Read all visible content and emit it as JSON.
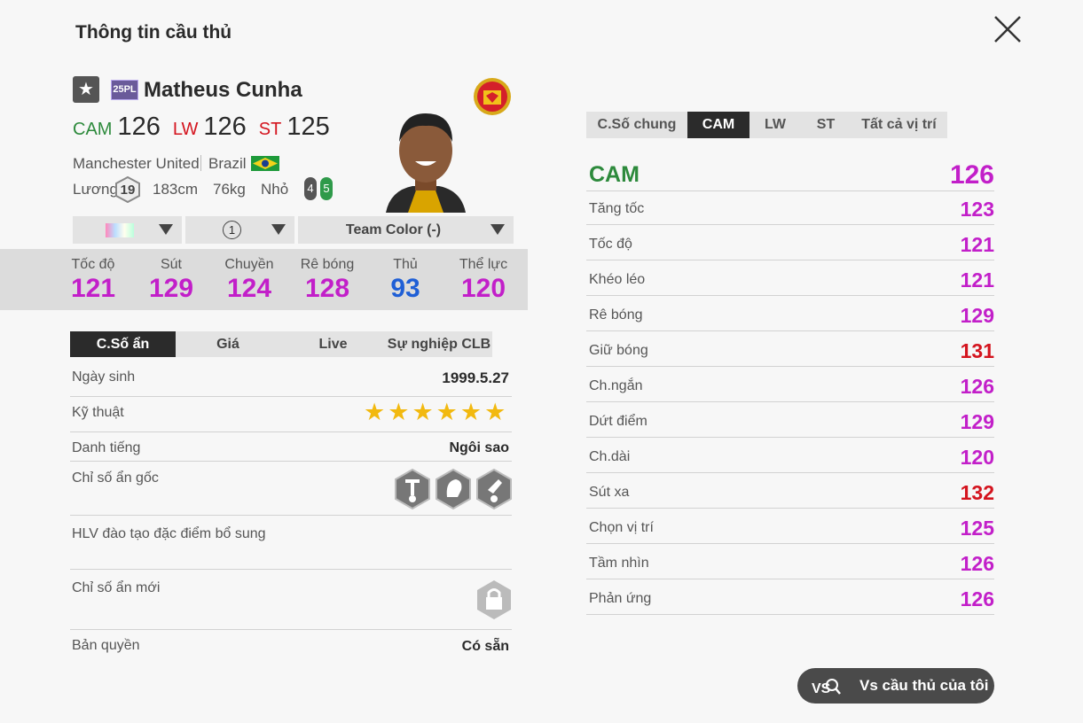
{
  "header": {
    "title": "Thông tin cầu thủ"
  },
  "player": {
    "season": "25PL",
    "name": "Matheus Cunha",
    "positions": [
      {
        "pos": "CAM",
        "ovr": 126
      },
      {
        "pos": "LW",
        "ovr": 126
      },
      {
        "pos": "ST",
        "ovr": 125
      }
    ],
    "club": "Manchester United",
    "nation": "Brazil",
    "salary_label": "Lương",
    "salary": 19,
    "height": "183cm",
    "weight": "76kg",
    "body": "Nhỏ",
    "weak_foot": 4,
    "skill_moves": 5
  },
  "selectors": {
    "level": 1,
    "team_color": "Team Color (-)"
  },
  "summary": [
    {
      "label": "Tốc độ",
      "value": 121
    },
    {
      "label": "Sút",
      "value": 129
    },
    {
      "label": "Chuyền",
      "value": 124
    },
    {
      "label": "Rê bóng",
      "value": 128
    },
    {
      "label": "Thủ",
      "value": 93
    },
    {
      "label": "Thể lực",
      "value": 120
    }
  ],
  "tabs": [
    "C.Số ẩn",
    "Giá",
    "Live",
    "Sự nghiệp CLB"
  ],
  "info": {
    "birth_label": "Ngày sinh",
    "birth": "1999.5.27",
    "technique_label": "Kỹ thuật",
    "technique_stars": 6,
    "reputation_label": "Danh tiếng",
    "reputation": "Ngôi sao",
    "traits_label": "Chỉ số ẩn gốc",
    "coach_label": "HLV đào tạo đặc điểm bổ sung",
    "new_traits_label": "Chỉ số ẩn mới",
    "license_label": "Bản quyền",
    "license": "Có sẵn"
  },
  "position_tabs": [
    "C.Số chung",
    "CAM",
    "LW",
    "ST",
    "Tất cả vị trí"
  ],
  "stats": {
    "position": "CAM",
    "overall": 126,
    "rows": [
      {
        "label": "Tăng tốc",
        "value": 123
      },
      {
        "label": "Tốc độ",
        "value": 121
      },
      {
        "label": "Khéo léo",
        "value": 121
      },
      {
        "label": "Rê bóng",
        "value": 129
      },
      {
        "label": "Giữ bóng",
        "value": 131
      },
      {
        "label": "Ch.ngắn",
        "value": 126
      },
      {
        "label": "Dứt điểm",
        "value": 129
      },
      {
        "label": "Ch.dài",
        "value": 120
      },
      {
        "label": "Sút xa",
        "value": 132
      },
      {
        "label": "Chọn vị trí",
        "value": 125
      },
      {
        "label": "Tầm nhìn",
        "value": 126
      },
      {
        "label": "Phản ứng",
        "value": 126
      }
    ]
  },
  "button": "Vs cầu thủ của tôi"
}
